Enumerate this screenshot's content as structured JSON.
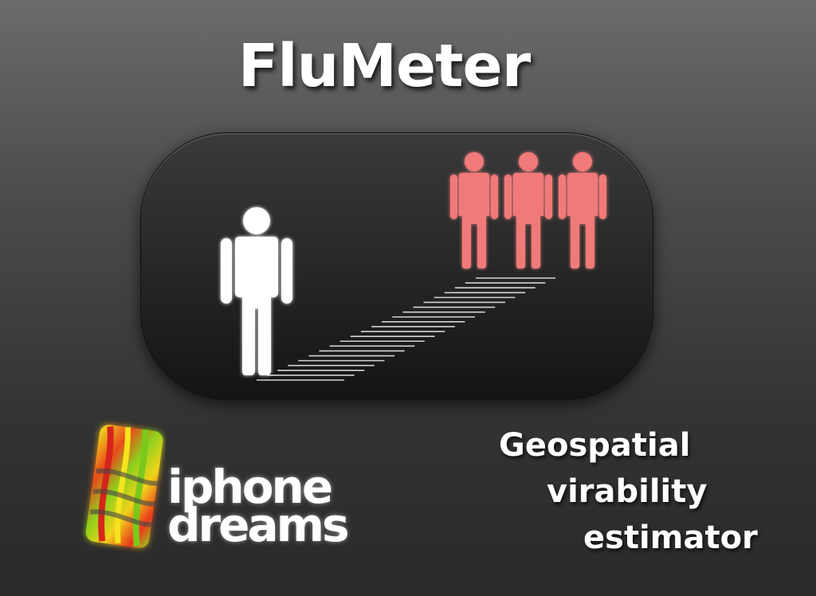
{
  "app": {
    "title": "FluMeter"
  },
  "illustration": {
    "person_icon": "person-icon",
    "group_icon": "infected-people-icon",
    "distance_icon": "distance-path-icon",
    "person_color": "#ffffff",
    "group_color": "#f07070"
  },
  "logo": {
    "line1": "iphone",
    "line2": "dreams",
    "icon": "iphone-dreams-logo-icon"
  },
  "tagline": {
    "line1": "Geospatial",
    "line2": "virability",
    "line3": "estimator"
  }
}
